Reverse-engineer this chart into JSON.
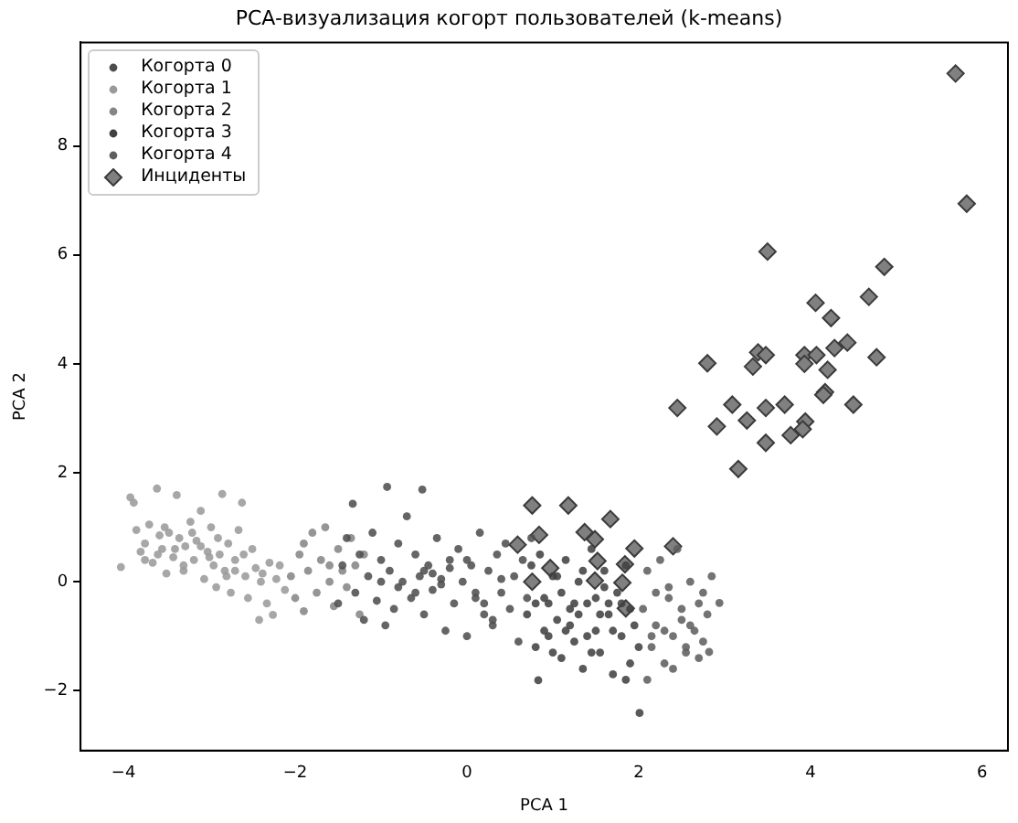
{
  "chart_data": {
    "type": "scatter",
    "title": "PCA-визуализация когорт пользователей (k-means)",
    "xlabel": "PCA 1",
    "ylabel": "PCA 2",
    "xlim": [
      -4.5,
      6.3
    ],
    "xticks": [
      -4,
      -2,
      0,
      2,
      4,
      6
    ],
    "ylim": [
      -3.1,
      9.9
    ],
    "yticks": [
      -2,
      0,
      2,
      4,
      6,
      8
    ],
    "grid": false,
    "legend": "top left",
    "series": [
      {
        "name": "Когорта 0",
        "color": "#4d4d4d",
        "marker": "circle",
        "x": [
          -1.5,
          -1.45,
          -1.4,
          -1.33,
          -1.3,
          -1.25,
          -1.2,
          -1.15,
          -1.1,
          -1.05,
          -1.0,
          -0.95,
          -0.93,
          -0.9,
          -0.85,
          -0.8,
          -0.75,
          -0.7,
          -0.65,
          -0.6,
          -0.55,
          -0.52,
          -0.5,
          -0.45,
          -0.4,
          -0.35,
          -0.3,
          -0.25,
          -0.2,
          -0.15,
          -0.1,
          -0.05,
          0.0,
          0.05,
          0.1,
          0.15,
          0.2,
          0.25,
          0.3,
          0.35,
          0.4,
          0.45,
          0.5,
          0.55,
          0.6,
          0.65,
          0.7,
          0.75,
          -0.8,
          -0.4,
          -0.2,
          0.0,
          0.2,
          -0.6,
          -0.3,
          0.1,
          0.4,
          -1.0,
          -0.5,
          0.3
        ],
        "values": [
          -0.4,
          0.3,
          0.8,
          1.43,
          -0.2,
          0.5,
          -0.7,
          0.1,
          0.9,
          -0.35,
          0.4,
          -0.8,
          1.74,
          0.2,
          -0.5,
          0.7,
          0.0,
          1.2,
          -0.3,
          0.5,
          0.1,
          1.69,
          -0.6,
          0.3,
          -0.15,
          0.8,
          0.05,
          -0.9,
          0.4,
          -0.4,
          0.6,
          0.0,
          -1.0,
          0.3,
          -0.3,
          0.9,
          -0.6,
          0.2,
          -0.8,
          0.5,
          -0.2,
          0.7,
          -0.5,
          0.1,
          -1.1,
          0.4,
          -0.3,
          0.8,
          -0.1,
          0.15,
          0.25,
          0.4,
          -0.4,
          -0.2,
          -0.05,
          -0.2,
          0.05,
          0.0,
          0.2,
          -0.7
        ]
      },
      {
        "name": "Когорта 1",
        "color": "#9a9a9a",
        "marker": "circle",
        "x": [
          -4.03,
          -3.92,
          -3.85,
          -3.88,
          -3.8,
          -3.75,
          -3.7,
          -3.66,
          -3.61,
          -3.58,
          -3.55,
          -3.5,
          -3.47,
          -3.42,
          -3.38,
          -3.35,
          -3.3,
          -3.28,
          -3.22,
          -3.18,
          -3.15,
          -3.1,
          -3.06,
          -3.02,
          -2.98,
          -2.95,
          -2.92,
          -2.88,
          -2.85,
          -2.82,
          -2.78,
          -2.75,
          -2.7,
          -2.66,
          -2.62,
          -2.58,
          -2.55,
          -2.5,
          -2.46,
          -2.42,
          -2.38,
          -2.33,
          -2.3,
          -2.26,
          -2.22,
          -2.18,
          -2.12,
          -3.4,
          -3.6,
          -3.2,
          -2.9,
          -3.0,
          -2.7,
          -3.75,
          -3.52,
          -2.6,
          -2.4,
          -3.1,
          -2.8,
          -3.3
        ],
        "values": [
          0.27,
          1.55,
          0.95,
          1.45,
          0.55,
          0.7,
          1.05,
          0.35,
          1.71,
          0.85,
          0.6,
          0.15,
          0.9,
          0.45,
          1.59,
          0.8,
          0.2,
          0.65,
          1.1,
          0.4,
          0.75,
          1.3,
          0.05,
          0.55,
          1.0,
          0.3,
          -0.1,
          0.5,
          1.61,
          0.2,
          0.7,
          -0.2,
          0.4,
          0.95,
          1.45,
          0.1,
          -0.3,
          0.6,
          0.25,
          -0.7,
          0.15,
          -0.4,
          0.35,
          -0.61,
          0.05,
          0.3,
          -0.15,
          0.6,
          0.5,
          0.9,
          0.8,
          0.45,
          0.2,
          0.4,
          1.0,
          0.5,
          0.0,
          0.65,
          0.1,
          0.3
        ]
      },
      {
        "name": "Когорта 2",
        "color": "#858585",
        "marker": "circle",
        "x": [
          -2.05,
          -2.0,
          -1.95,
          -1.9,
          -1.85,
          -1.8,
          -1.75,
          -1.7,
          -1.65,
          -1.6,
          -1.55,
          -1.5,
          -1.45,
          -1.4,
          -1.35,
          -1.3,
          -1.25,
          -1.2,
          -1.9,
          -1.6
        ],
        "values": [
          0.1,
          -0.3,
          0.5,
          -0.54,
          0.2,
          0.9,
          -0.2,
          0.4,
          1.0,
          0.0,
          -0.45,
          0.6,
          0.2,
          -0.1,
          0.8,
          0.3,
          -0.6,
          0.5,
          0.7,
          0.3
        ]
      },
      {
        "name": "Когорта 3",
        "color": "#404040",
        "marker": "circle",
        "x": [
          0.7,
          0.75,
          0.8,
          0.83,
          0.85,
          0.9,
          0.95,
          1.0,
          1.05,
          1.1,
          1.15,
          1.2,
          1.25,
          1.3,
          1.35,
          1.4,
          1.45,
          1.5,
          1.55,
          1.6,
          1.65,
          1.7,
          1.75,
          1.8,
          1.85,
          1.9,
          1.95,
          2.0,
          0.9,
          1.1,
          1.3,
          1.5,
          1.7,
          1.9,
          1.0,
          1.2,
          1.4,
          1.6,
          1.8,
          2.01,
          0.8,
          1.05,
          1.25,
          1.45,
          1.65,
          1.85,
          1.35,
          1.55,
          1.15,
          0.95
        ],
        "values": [
          -0.6,
          0.3,
          -1.2,
          -1.81,
          0.5,
          -0.3,
          -1.0,
          0.1,
          -0.7,
          -1.4,
          0.4,
          -0.5,
          -1.1,
          0.0,
          -1.6,
          -0.4,
          0.6,
          -0.9,
          -1.3,
          0.2,
          -0.6,
          -1.7,
          -0.2,
          -1.0,
          0.3,
          -1.5,
          -0.8,
          -1.2,
          -0.9,
          -0.2,
          -0.6,
          -0.3,
          -0.9,
          -0.5,
          -1.3,
          -0.8,
          -1.0,
          -0.1,
          -0.4,
          -2.41,
          -0.4,
          0.1,
          -0.4,
          -1.3,
          -0.4,
          -1.8,
          0.2,
          -0.6,
          -0.9,
          -0.4
        ]
      },
      {
        "name": "Когорта 4",
        "color": "#5e5e5e",
        "marker": "circle",
        "x": [
          2.05,
          2.1,
          2.15,
          2.2,
          2.25,
          2.3,
          2.35,
          2.4,
          2.45,
          2.5,
          2.55,
          2.6,
          2.65,
          2.7,
          2.75,
          2.8,
          2.82,
          2.85,
          2.94,
          2.1,
          2.2,
          2.3,
          2.4,
          2.5,
          2.6,
          2.7,
          2.15,
          2.35,
          2.55,
          2.75
        ],
        "values": [
          -0.5,
          0.2,
          -1.2,
          -0.8,
          0.4,
          -1.5,
          -0.3,
          -1.0,
          0.6,
          -0.7,
          -1.3,
          0.0,
          -0.9,
          -0.4,
          -1.1,
          -0.6,
          -1.29,
          0.1,
          -0.39,
          -1.8,
          -0.2,
          -0.9,
          -1.6,
          -0.5,
          -0.8,
          -1.4,
          -1.0,
          -0.1,
          -1.2,
          -0.2
        ]
      },
      {
        "name": "Инциденты",
        "color": "#808080",
        "marker": "diamond",
        "x": [
          5.69,
          5.82,
          3.5,
          4.86,
          4.68,
          4.06,
          4.24,
          4.43,
          4.28,
          3.39,
          3.48,
          3.93,
          4.07,
          4.77,
          2.8,
          3.93,
          3.33,
          4.2,
          4.17,
          4.15,
          2.45,
          3.09,
          3.48,
          3.7,
          4.5,
          2.91,
          3.26,
          3.94,
          3.91,
          3.77,
          3.48,
          3.16,
          0.76,
          1.18,
          1.67,
          0.84,
          1.37,
          1.49,
          0.59,
          1.95,
          2.4,
          1.52,
          1.84,
          0.97,
          1.49,
          1.81,
          0.76,
          1.85
        ],
        "values": [
          9.33,
          6.94,
          6.06,
          5.78,
          5.23,
          5.12,
          4.84,
          4.39,
          4.29,
          4.21,
          4.16,
          4.16,
          4.16,
          4.12,
          4.01,
          4.0,
          3.95,
          3.89,
          3.48,
          3.43,
          3.19,
          3.25,
          3.19,
          3.25,
          3.25,
          2.85,
          2.96,
          2.94,
          2.8,
          2.69,
          2.55,
          2.07,
          1.4,
          1.4,
          1.15,
          0.86,
          0.91,
          0.78,
          0.68,
          0.61,
          0.65,
          0.38,
          0.32,
          0.25,
          0.02,
          -0.02,
          0.0,
          -0.49
        ]
      }
    ]
  }
}
